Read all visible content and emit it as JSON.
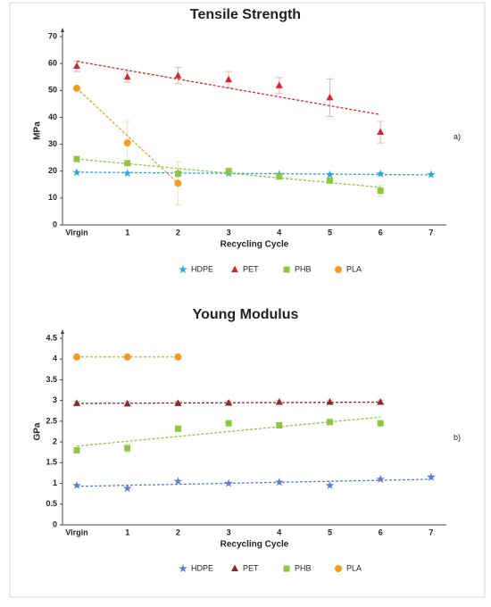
{
  "chart_data": [
    {
      "type": "scatter",
      "title": "Tensile Strength",
      "side_label": "a)",
      "y_label": "MPa",
      "x_label": "Recycling Cycle",
      "categories": [
        "Virgin",
        "1",
        "2",
        "3",
        "4",
        "5",
        "6",
        "7"
      ],
      "ylim": [
        0,
        70
      ],
      "yticks": [
        0,
        10,
        20,
        30,
        40,
        50,
        60,
        70
      ],
      "grid": false,
      "series": [
        {
          "name": "HDPE",
          "color": "#29a8e0",
          "marker": "star",
          "values": [
            19.5,
            19.2,
            19.3,
            19.2,
            18.8,
            18.7,
            19,
            18.7
          ],
          "errors": [
            null,
            null,
            null,
            null,
            null,
            null,
            null,
            null
          ],
          "trend": [
            19.6,
            18.6
          ],
          "trend_range": [
            0,
            7
          ]
        },
        {
          "name": "PET",
          "color": "#d7262e",
          "marker": "triangle",
          "values": [
            59,
            55,
            55.5,
            54,
            51.8,
            47.3,
            34.5,
            null
          ],
          "errors": [
            2,
            2,
            3,
            3,
            3,
            7,
            4,
            null
          ],
          "trend": [
            60.8,
            41
          ],
          "trend_range": [
            0,
            6
          ]
        },
        {
          "name": "PHB",
          "color": "#8dc63f",
          "marker": "square",
          "values": [
            24.5,
            23,
            19,
            20,
            18,
            16.5,
            12.7,
            null
          ],
          "errors": [
            null,
            null,
            null,
            1,
            1,
            1,
            2,
            null
          ],
          "trend": [
            24.5,
            14
          ],
          "trend_range": [
            0,
            6
          ]
        },
        {
          "name": "PLA",
          "color": "#f39c1f",
          "marker": "circle",
          "values": [
            50.8,
            30.5,
            15.5,
            null,
            null,
            null,
            null,
            null
          ],
          "errors": [
            null,
            8,
            8,
            null,
            null,
            null,
            null,
            null
          ],
          "trend": [
            50.8,
            15.5
          ],
          "trend_range": [
            0,
            2
          ]
        }
      ]
    },
    {
      "type": "scatter",
      "title": "Young Modulus",
      "side_label": "b)",
      "y_label": "GPa",
      "x_label": "Recycling Cycle",
      "categories": [
        "Virgin",
        "1",
        "2",
        "3",
        "4",
        "5",
        "6",
        "7"
      ],
      "ylim": [
        0,
        4.5
      ],
      "yticks": [
        0,
        0.5,
        1,
        1.5,
        2,
        2.5,
        3,
        3.5,
        4,
        4.5
      ],
      "grid": false,
      "series": [
        {
          "name": "HDPE",
          "color": "#5b7fd6",
          "marker": "star",
          "values": [
            0.95,
            0.88,
            1.05,
            1.0,
            1.03,
            0.95,
            1.1,
            1.15
          ],
          "errors": [
            null,
            null,
            null,
            null,
            null,
            null,
            null,
            0.05
          ],
          "trend": [
            0.93,
            1.1
          ],
          "trend_range": [
            0,
            7
          ]
        },
        {
          "name": "PET",
          "color": "#8b2a2a",
          "marker": "triangle",
          "values": [
            2.93,
            2.92,
            2.93,
            2.94,
            2.96,
            2.96,
            2.96,
            null
          ],
          "errors": [
            0.05,
            0.05,
            0.05,
            0.05,
            0.05,
            0.05,
            0.05,
            null
          ],
          "trend": [
            2.93,
            2.96
          ],
          "trend_range": [
            0,
            6
          ]
        },
        {
          "name": "PHB",
          "color": "#8dc63f",
          "marker": "square",
          "values": [
            1.8,
            1.85,
            2.32,
            2.45,
            2.4,
            2.48,
            2.45,
            null
          ],
          "errors": [
            0.05,
            0.1,
            0.05,
            null,
            null,
            null,
            null,
            null
          ],
          "trend": [
            1.9,
            2.6
          ],
          "trend_range": [
            0,
            6
          ]
        },
        {
          "name": "PLA",
          "color": "#f39c1f",
          "marker": "circle",
          "values": [
            4.05,
            4.05,
            4.05,
            null,
            null,
            null,
            null,
            null
          ],
          "errors": [
            null,
            null,
            null,
            null,
            null,
            null,
            null,
            null
          ],
          "trend": [
            4.05,
            4.05
          ],
          "trend_range": [
            0,
            2
          ]
        }
      ]
    }
  ]
}
